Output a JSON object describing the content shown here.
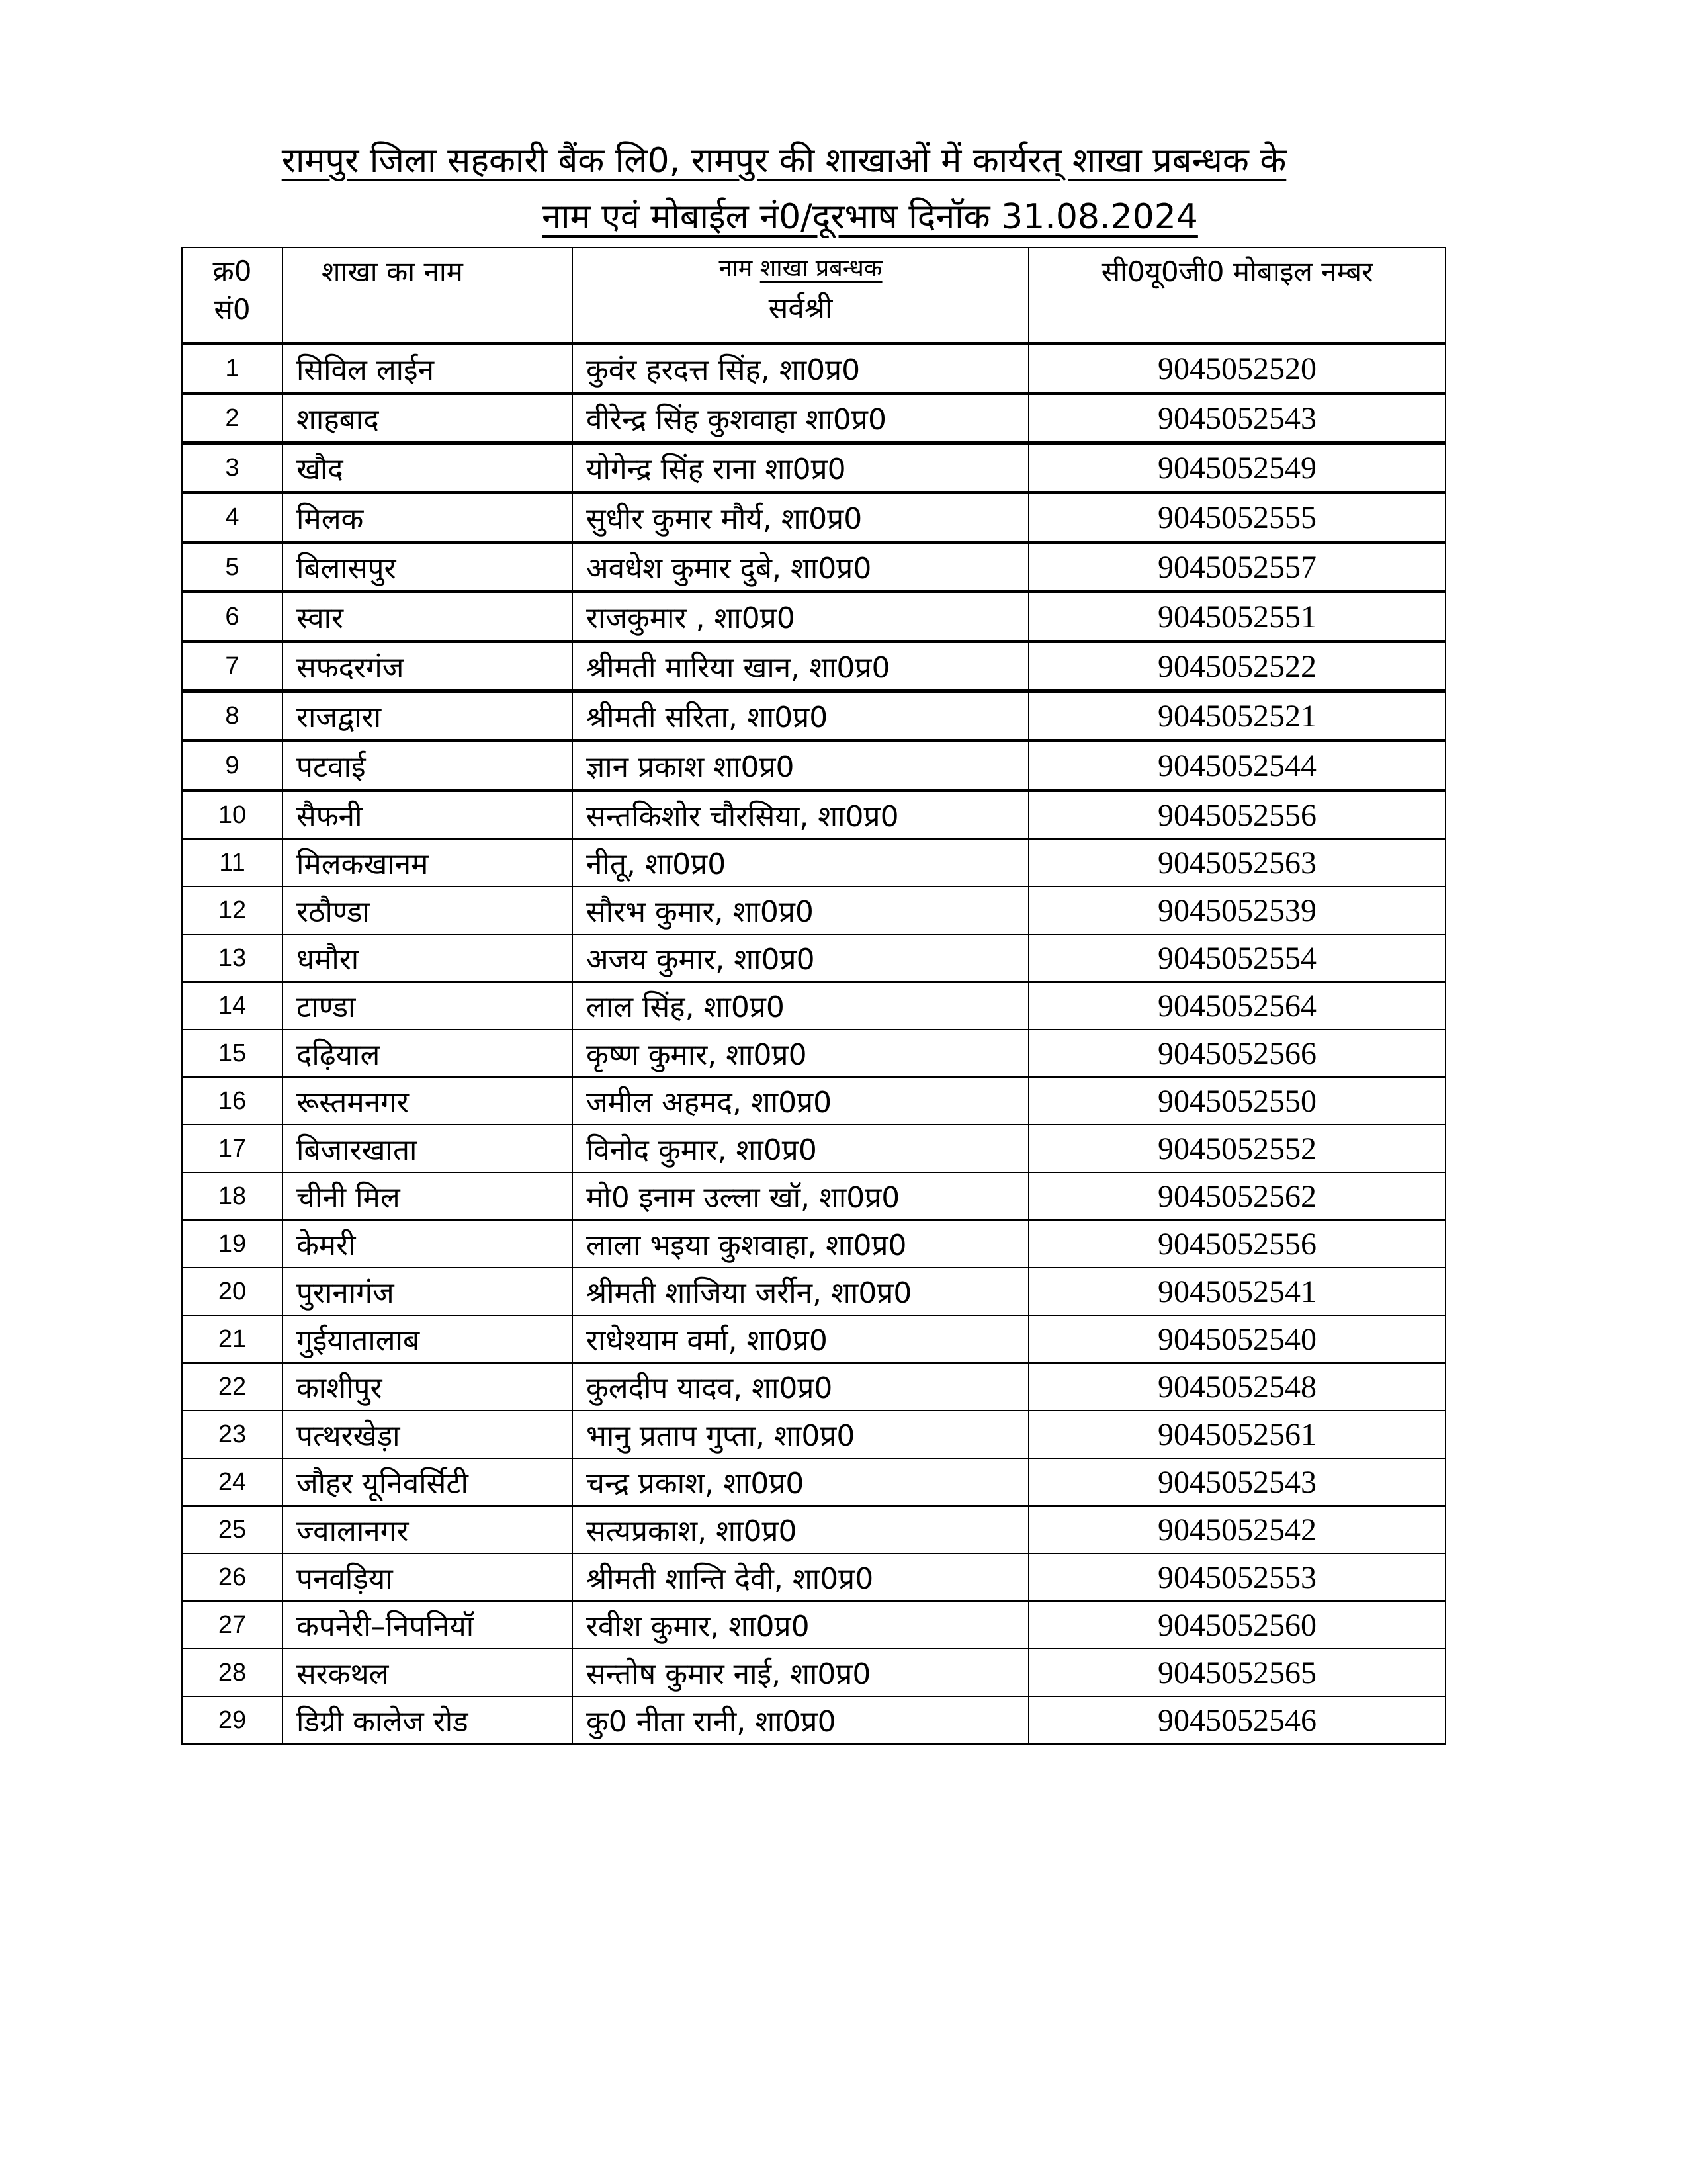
{
  "title": {
    "line1": "रामपुर जिला सहकारी बैंक लि0, रामपुर की शाखाओं में कार्यरत् शाखा प्रबन्धक के",
    "line2": "नाम एवं मोबाईल नं0/दूरभाष दिनॉक 31.08.2024"
  },
  "table": {
    "headers": {
      "serial_line1": "क्र0",
      "serial_line2": "सं0",
      "branch": "शाखा का नाम",
      "manager_prefix": "नाम",
      "manager_underlined": "शाखा प्रबन्धक",
      "manager_sub": "सर्वश्री",
      "mobile": "सी0यू0जी0 मोबाइल नम्बर"
    },
    "rows": [
      {
        "sn": "1",
        "branch": "सिविल लाईन",
        "manager": "कुवंर हरदत्त सिंह, शा0प्र0",
        "mobile": "9045052520"
      },
      {
        "sn": "2",
        "branch": "शाहबाद",
        "manager": "वीरेन्द्र सिंह कुशवाहा शा0प्र0",
        "mobile": "9045052543"
      },
      {
        "sn": "3",
        "branch": "खौद",
        "manager": "योगेन्द्र सिंह राना शा0प्र0",
        "mobile": "9045052549"
      },
      {
        "sn": "4",
        "branch": "मिलक",
        "manager": "सुधीर कुमार मौर्य, शा0प्र0",
        "mobile": "9045052555"
      },
      {
        "sn": "5",
        "branch": "बिलासपुर",
        "manager": "अवधेश कुमार दुबे, शा0प्र0",
        "mobile": "9045052557"
      },
      {
        "sn": "6",
        "branch": "स्वार",
        "manager": "राजकुमार , शा0प्र0",
        "mobile": "9045052551"
      },
      {
        "sn": "7",
        "branch": "सफदरगंज",
        "manager": "श्रीमती मारिया खान, शा0प्र0",
        "mobile": "9045052522"
      },
      {
        "sn": "8",
        "branch": "राजद्वारा",
        "manager": "श्रीमती सरिता, शा0प्र0",
        "mobile": "9045052521"
      },
      {
        "sn": "9",
        "branch": "पटवाई",
        "manager": "ज्ञान प्रकाश शा0प्र0",
        "mobile": "9045052544"
      },
      {
        "sn": "10",
        "branch": "सैफनी",
        "manager": "सन्तकिशोर चौरसिया, शा0प्र0",
        "mobile": "9045052556"
      },
      {
        "sn": "11",
        "branch": "मिलकखानम",
        "manager": "नीतू, शा0प्र0",
        "mobile": "9045052563"
      },
      {
        "sn": "12",
        "branch": "रठौण्डा",
        "manager": "सौरभ कुमार, शा0प्र0",
        "mobile": "9045052539"
      },
      {
        "sn": "13",
        "branch": "धमौरा",
        "manager": "अजय कुमार, शा0प्र0",
        "mobile": "9045052554"
      },
      {
        "sn": "14",
        "branch": "टाण्डा",
        "manager": "लाल सिंह, शा0प्र0",
        "mobile": "9045052564"
      },
      {
        "sn": "15",
        "branch": "दढ़ियाल",
        "manager": "कृष्ण कुमार, शा0प्र0",
        "mobile": "9045052566"
      },
      {
        "sn": "16",
        "branch": "रूस्तमनगर",
        "manager": "जमील अहमद, शा0प्र0",
        "mobile": "9045052550"
      },
      {
        "sn": "17",
        "branch": "बिजारखाता",
        "manager": "विनोद कुमार, शा0प्र0",
        "mobile": "9045052552"
      },
      {
        "sn": "18",
        "branch": "चीनी मिल",
        "manager": "मो0 इनाम उल्ला खॉ, शा0प्र0",
        "mobile": "9045052562"
      },
      {
        "sn": "19",
        "branch": "केमरी",
        "manager": "लाला भइया कुशवाहा, शा0प्र0",
        "mobile": "9045052556"
      },
      {
        "sn": "20",
        "branch": "पुरानागंज",
        "manager": "श्रीमती शाजिया जर्रीन, शा0प्र0",
        "mobile": "9045052541"
      },
      {
        "sn": "21",
        "branch": "गुईयातालाब",
        "manager": "राधेश्याम वर्मा, शा0प्र0",
        "mobile": "9045052540"
      },
      {
        "sn": "22",
        "branch": "काशीपुर",
        "manager": "कुलदीप यादव, शा0प्र0",
        "mobile": "9045052548"
      },
      {
        "sn": "23",
        "branch": "पत्थरखेड़ा",
        "manager": "भानु प्रताप गुप्ता, शा0प्र0",
        "mobile": "9045052561"
      },
      {
        "sn": "24",
        "branch": "जौहर यूनिवर्सिटी",
        "manager": "चन्द्र प्रकाश, शा0प्र0",
        "mobile": "9045052543"
      },
      {
        "sn": "25",
        "branch": "ज्वालानगर",
        "manager": "सत्यप्रकाश, शा0प्र0",
        "mobile": "9045052542"
      },
      {
        "sn": "26",
        "branch": "पनवड़िया",
        "manager": "श्रीमती शान्ति देवी, शा0प्र0",
        "mobile": "9045052553"
      },
      {
        "sn": "27",
        "branch": "कपनेरी–निपनियॉ",
        "manager": "रवीश कुमार, शा0प्र0",
        "mobile": "9045052560"
      },
      {
        "sn": "28",
        "branch": "सरकथल",
        "manager": "सन्तोष कुमार नाई, शा0प्र0",
        "mobile": "9045052565"
      },
      {
        "sn": "29",
        "branch": "डिग्री कालेज रोड",
        "manager": "कु0 नीता रानी, शा0प्र0",
        "mobile": "9045052546"
      }
    ]
  }
}
